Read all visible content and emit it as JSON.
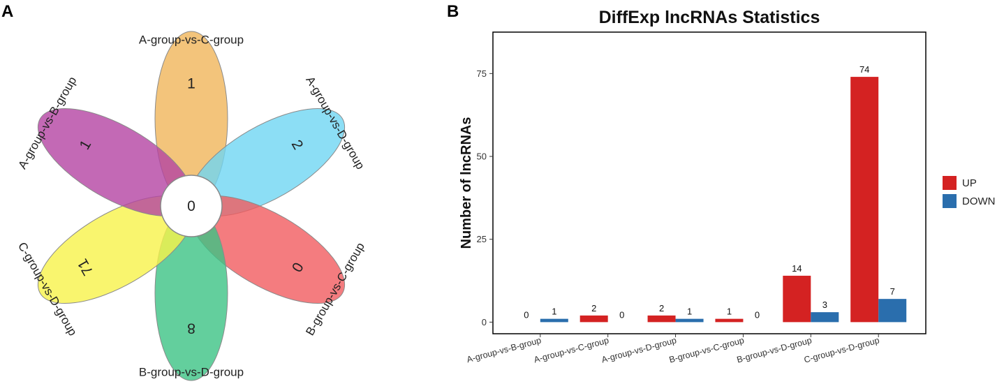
{
  "panels": {
    "a_label": "A",
    "b_label": "B"
  },
  "venn": {
    "center_value": "0",
    "petals": [
      {
        "label": "A-group-vs-C-group",
        "count": "1",
        "color": "#f0b55a"
      },
      {
        "label": "A-group-vs-D-group",
        "count": "2",
        "color": "#6fd6f3"
      },
      {
        "label": "B-group-vs-C-group",
        "count": "0",
        "color": "#f15b5f"
      },
      {
        "label": "B-group-vs-D-group",
        "count": "8",
        "color": "#3cc385"
      },
      {
        "label": "C-group-vs-D-group",
        "count": "71",
        "color": "#f7f24a"
      },
      {
        "label": "A-group-vs-B-group",
        "count": "1",
        "color": "#b444a3"
      }
    ]
  },
  "chart_data": {
    "type": "bar",
    "title": "DiffExp lncRNAs Statistics",
    "xlabel": "",
    "ylabel": "Number of lncRNAs",
    "ylim": [
      -3.5,
      87.5
    ],
    "yticks": [
      0,
      25,
      50,
      75
    ],
    "categories": [
      "A-group-vs-B-group",
      "A-group-vs-C-group",
      "A-group-vs-D-group",
      "B-group-vs-C-group",
      "B-group-vs-D-group",
      "C-group-vs-D-group"
    ],
    "series": [
      {
        "name": "UP",
        "color": "#d42222",
        "values": [
          0,
          2,
          2,
          1,
          14,
          74
        ]
      },
      {
        "name": "DOWN",
        "color": "#2a6ead",
        "values": [
          1,
          0,
          1,
          0,
          3,
          7
        ]
      }
    ],
    "legend_position": "right"
  }
}
